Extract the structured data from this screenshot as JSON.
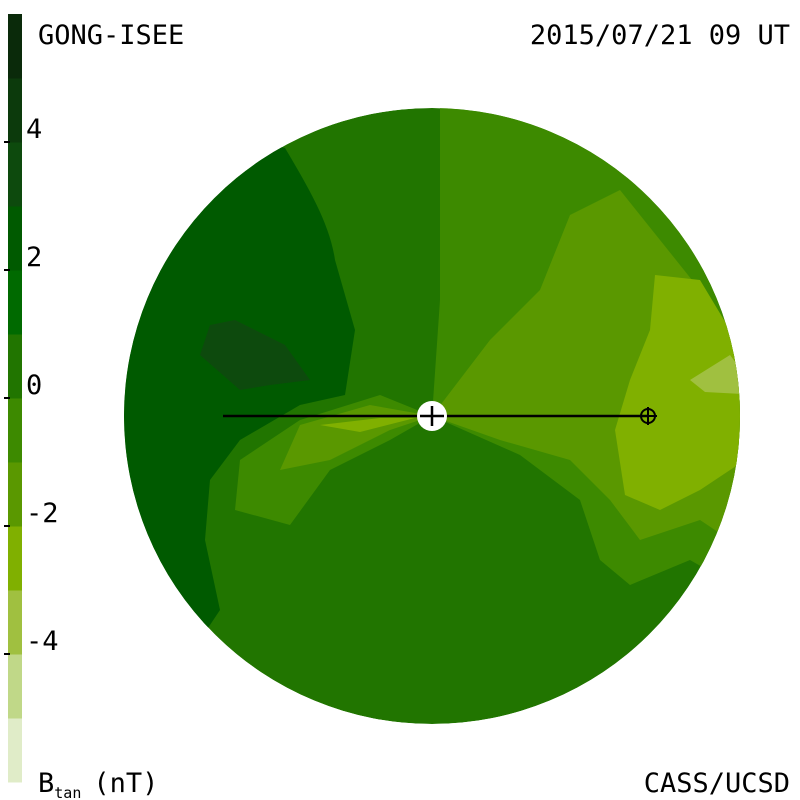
{
  "chart_data": {
    "type": "colorbar",
    "title": "GONG-ISEE",
    "subtitle": "2015/07/21 09 UT",
    "credit": "CASS/UCSD",
    "axis_label": {
      "symbol": "B",
      "subscript": "tan",
      "unit": "(nT)"
    },
    "ylim": [
      -6,
      6
    ],
    "yticks": [
      -4,
      -2,
      0,
      2,
      4
    ],
    "colors": [
      "#e0ecc8",
      "#c0d888",
      "#a0c040",
      "#80b000",
      "#5a9800",
      "#3d8a00",
      "#217500",
      "#006a00",
      "#005a00",
      "#0d4a0d",
      "#0c3a0c",
      "#0a2a0a"
    ]
  }
}
